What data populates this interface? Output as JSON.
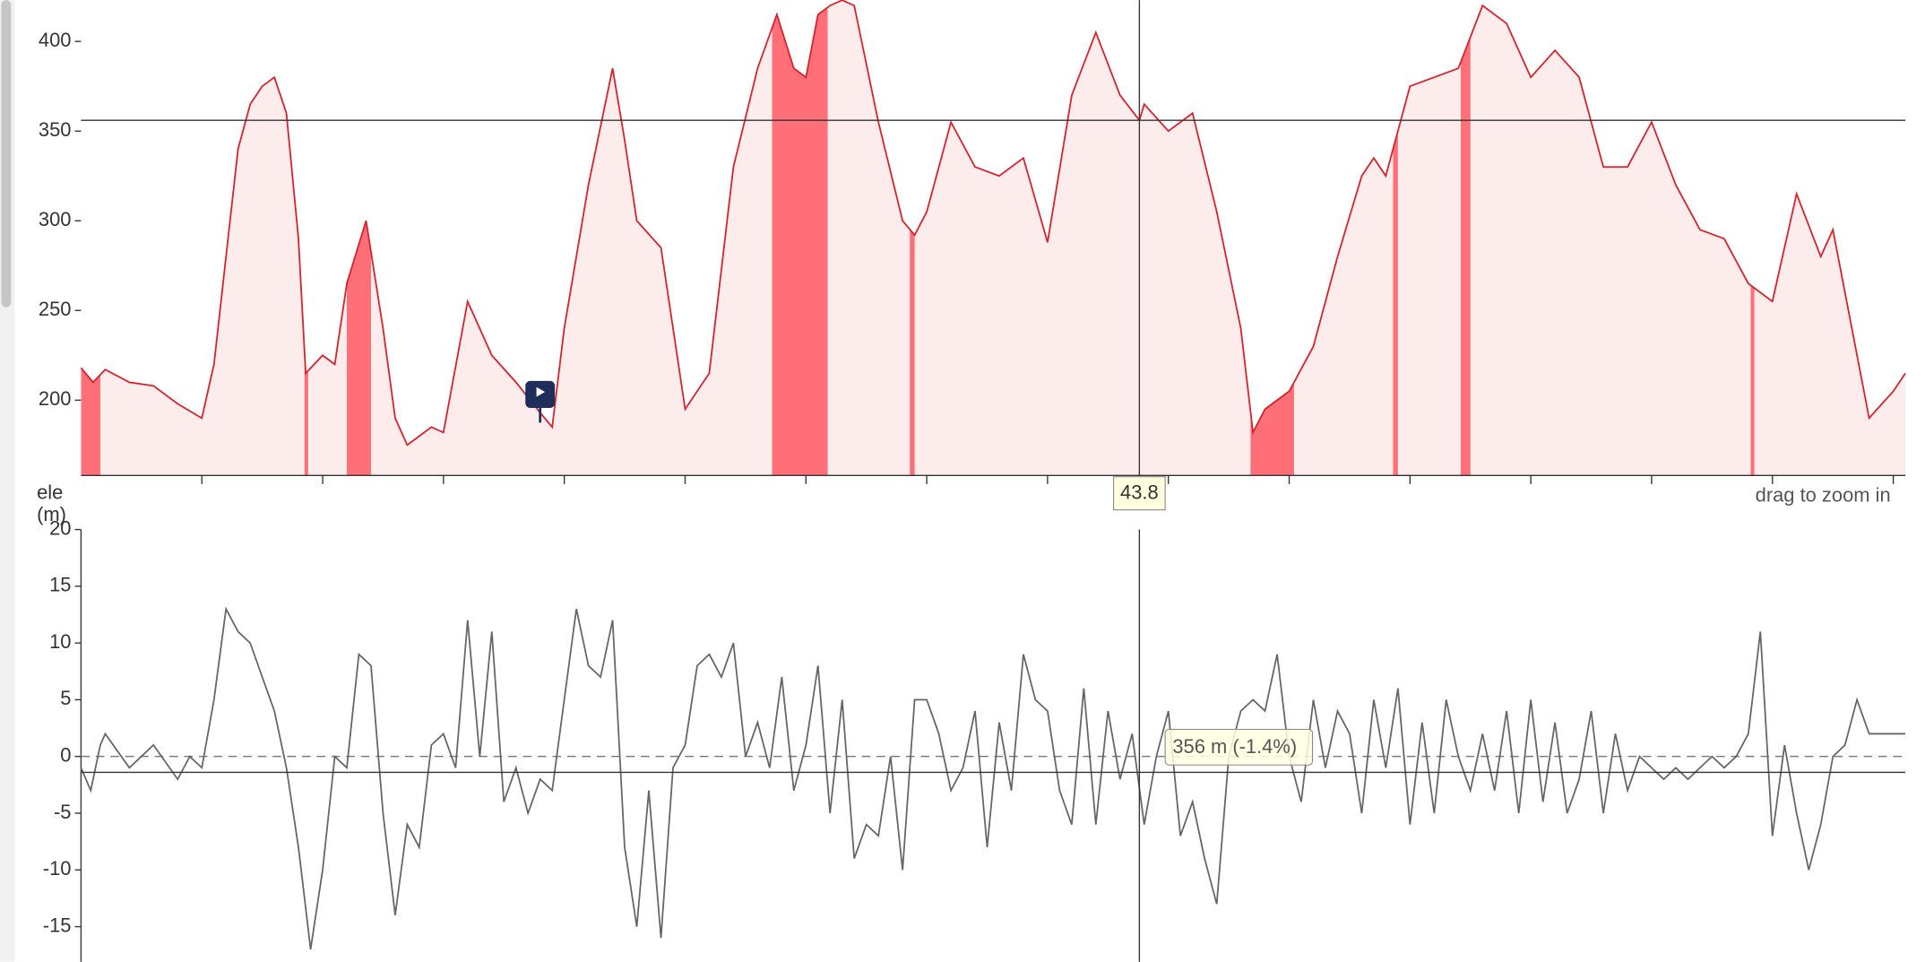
{
  "chart_data": [
    {
      "type": "area",
      "axis_label": "ele (m)",
      "hint": "drag to zoom in",
      "color": "#d9202b",
      "fill": "#fdecec",
      "highlight_color": "#ff6f77",
      "xlim": [
        0,
        75.5
      ],
      "xticks": [
        5,
        10,
        15,
        20,
        25,
        30,
        35,
        40,
        45,
        50,
        55,
        60,
        65,
        70,
        75
      ],
      "ylim": [
        158,
        423
      ],
      "yticks": [
        200,
        250,
        300,
        350,
        400
      ],
      "x": [
        0,
        0.5,
        1,
        2,
        3,
        4,
        5,
        5.5,
        6,
        6.5,
        7,
        7.5,
        8,
        8.5,
        9,
        9.3,
        10,
        10.5,
        11,
        11.8,
        12.5,
        13,
        13.5,
        14.5,
        15,
        16,
        17,
        18,
        19,
        19.5,
        20,
        21,
        22,
        22.5,
        23,
        24,
        25,
        26,
        27,
        28,
        28.8,
        29.5,
        30,
        30.5,
        31,
        31.5,
        32,
        33,
        34,
        34.5,
        35,
        36,
        37,
        38,
        39,
        40,
        41,
        42,
        43,
        43.8,
        44,
        45,
        46,
        47,
        48,
        48.5,
        49,
        50,
        51,
        52,
        53,
        53.5,
        54,
        55,
        56,
        57,
        58,
        59,
        60,
        61,
        62,
        63,
        64,
        65,
        66,
        67,
        68,
        69,
        70,
        71,
        72,
        72.5,
        73,
        74,
        75,
        75.5
      ],
      "values": [
        218,
        210,
        217,
        210,
        208,
        198,
        190,
        220,
        280,
        340,
        365,
        375,
        380,
        360,
        290,
        215,
        225,
        220,
        265,
        300,
        240,
        190,
        175,
        185,
        182,
        255,
        225,
        210,
        193,
        185,
        240,
        320,
        385,
        345,
        300,
        285,
        195,
        215,
        330,
        385,
        415,
        385,
        380,
        415,
        420,
        423,
        420,
        355,
        300,
        292,
        305,
        355,
        330,
        325,
        335,
        288,
        370,
        405,
        370,
        356,
        365,
        350,
        360,
        305,
        240,
        182,
        195,
        205,
        230,
        280,
        325,
        335,
        325,
        375,
        380,
        385,
        420,
        410,
        380,
        395,
        380,
        330,
        330,
        355,
        320,
        295,
        290,
        265,
        255,
        315,
        280,
        295,
        260,
        190,
        205,
        215
      ],
      "highlights": [
        [
          0,
          0.8
        ],
        [
          9.25,
          9.4
        ],
        [
          11.0,
          12.0
        ],
        [
          28.6,
          30.9
        ],
        [
          34.3,
          34.5
        ],
        [
          48.4,
          50.2
        ],
        [
          54.3,
          54.5
        ],
        [
          57.1,
          57.5
        ],
        [
          69.1,
          69.25
        ]
      ],
      "cursor": {
        "x": 43.8,
        "value": 356
      }
    },
    {
      "type": "line",
      "color": "#666666",
      "xlim": [
        0,
        75.5
      ],
      "ylim": [
        -18.1,
        20
      ],
      "yticks": [
        -15,
        -10,
        -5,
        0,
        5,
        10,
        15,
        20
      ],
      "zero_line": true,
      "x": [
        0,
        0.4,
        0.8,
        1,
        2,
        3,
        4,
        4.5,
        5,
        5.5,
        6,
        6.5,
        7,
        7.5,
        8,
        8.5,
        9,
        9.5,
        10,
        10.5,
        11,
        11.5,
        12,
        12.5,
        13,
        13.5,
        14,
        14.5,
        15,
        15.5,
        16,
        16.5,
        17,
        17.5,
        18,
        18.5,
        19,
        19.5,
        20,
        20.5,
        21,
        21.5,
        22,
        22.5,
        23,
        23.5,
        24,
        24.5,
        25,
        25.5,
        26,
        26.5,
        27,
        27.5,
        28,
        28.5,
        29,
        29.5,
        30,
        30.5,
        31,
        31.5,
        32,
        32.5,
        33,
        33.5,
        34,
        34.5,
        35,
        35.5,
        36,
        36.5,
        37,
        37.5,
        38,
        38.5,
        39,
        39.5,
        40,
        40.5,
        41,
        41.5,
        42,
        42.5,
        43,
        43.5,
        44,
        44.5,
        45,
        45.5,
        46,
        46.5,
        47,
        47.5,
        48,
        48.5,
        49,
        49.5,
        50,
        50.5,
        51,
        51.5,
        52,
        52.5,
        53,
        53.5,
        54,
        54.5,
        55,
        55.5,
        56,
        56.5,
        57,
        57.5,
        58,
        58.5,
        59,
        59.5,
        60,
        60.5,
        61,
        61.5,
        62,
        62.5,
        63,
        63.5,
        64,
        64.5,
        65,
        65.5,
        66,
        66.5,
        67,
        67.5,
        68,
        68.5,
        69,
        69.5,
        70,
        70.5,
        71,
        71.5,
        72,
        72.5,
        73,
        73.5,
        74,
        75.5
      ],
      "values": [
        -1,
        -3,
        1,
        2,
        -1,
        1,
        -2,
        0,
        -1,
        5,
        13,
        11,
        10,
        7,
        4,
        -1,
        -8,
        -17,
        -10,
        0,
        -1,
        9,
        8,
        -5,
        -14,
        -6,
        -8,
        1,
        2,
        -1,
        12,
        0,
        11,
        -4,
        -1,
        -5,
        -2,
        -3,
        5,
        13,
        8,
        7,
        12,
        -8,
        -15,
        -3,
        -16,
        -1,
        1,
        8,
        9,
        7,
        10,
        0,
        3,
        -1,
        7,
        -3,
        1,
        8,
        -5,
        5,
        -9,
        -6,
        -7,
        0,
        -10,
        5,
        5,
        2,
        -3,
        -1,
        4,
        -8,
        3,
        -3,
        9,
        5,
        4,
        -3,
        -6,
        6,
        -6,
        4,
        -2,
        2,
        -6,
        0,
        4,
        -7,
        -4,
        -9,
        -13,
        0,
        4,
        5,
        4,
        9,
        0,
        -4,
        5,
        -1,
        4,
        2,
        -5,
        5,
        -1,
        6,
        -6,
        3,
        -5,
        5,
        0,
        -3,
        2,
        -3,
        4,
        -5,
        5,
        -4,
        3,
        -5,
        -2,
        4,
        -5,
        2,
        -3,
        0,
        -1,
        -2,
        -1,
        -2,
        -1,
        0,
        -1,
        0,
        2,
        11,
        -7,
        1,
        -5,
        -10,
        -6,
        0,
        1,
        5,
        2,
        2
      ],
      "cursor": {
        "x": 43.8,
        "value": -1.4,
        "label": "356 m (-1.4%)"
      }
    }
  ]
}
